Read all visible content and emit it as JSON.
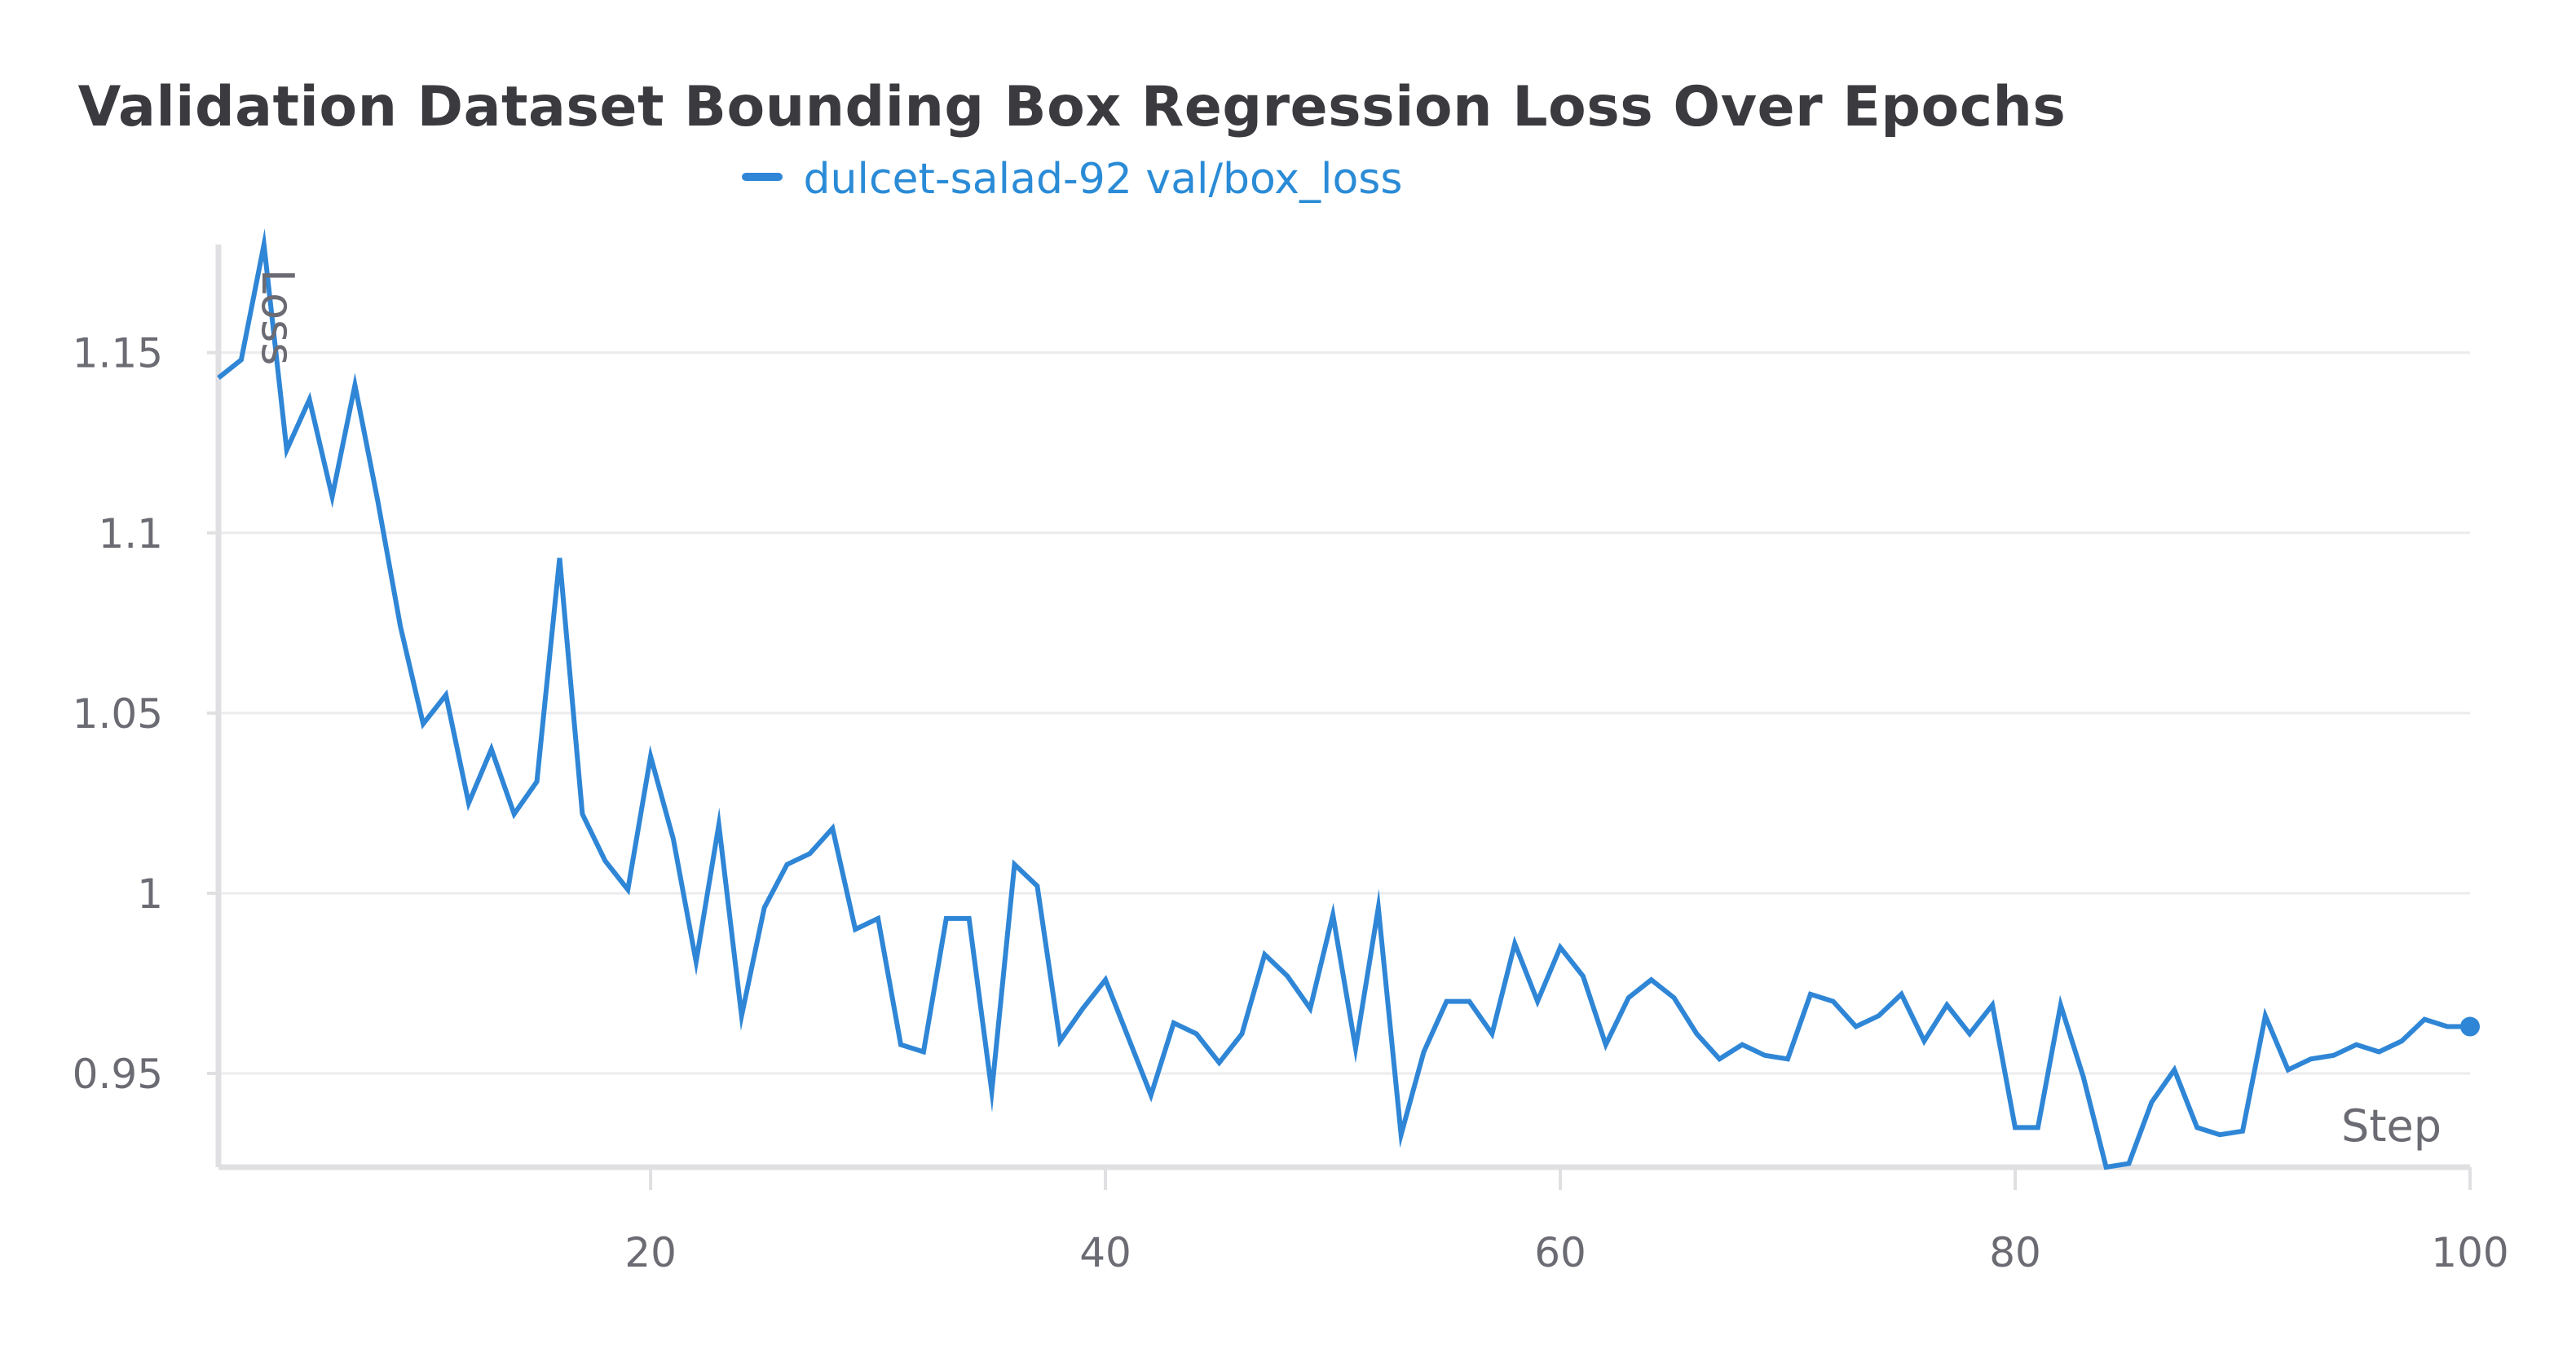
{
  "chart_data": {
    "type": "line",
    "title": "Validation Dataset Bounding Box Regression Loss Over Epochs",
    "xlabel": "Step",
    "ylabel": "Loss",
    "xlim": [
      1,
      100
    ],
    "ylim": [
      0.924,
      1.18
    ],
    "x_ticks": [
      20,
      40,
      60,
      80,
      100
    ],
    "x_tick_labels": [
      "20",
      "40",
      "60",
      "80",
      "100"
    ],
    "y_ticks": [
      0.95,
      1.0,
      1.05,
      1.1,
      1.15
    ],
    "y_tick_labels": [
      "0.95",
      "1",
      "1.05",
      "1.1",
      "1.15"
    ],
    "grid": true,
    "legend_position": "top-center",
    "series": [
      {
        "name": "dulcet-salad-92 val/box_loss",
        "color": "#2f86d6",
        "x": [
          1,
          2,
          3,
          4,
          5,
          6,
          7,
          8,
          9,
          10,
          11,
          12,
          13,
          14,
          15,
          16,
          17,
          18,
          19,
          20,
          21,
          22,
          23,
          24,
          25,
          26,
          27,
          28,
          29,
          30,
          31,
          32,
          33,
          34,
          35,
          36,
          37,
          38,
          39,
          40,
          41,
          42,
          43,
          44,
          45,
          46,
          47,
          48,
          49,
          50,
          51,
          52,
          53,
          54,
          55,
          56,
          57,
          58,
          59,
          60,
          61,
          62,
          63,
          64,
          65,
          66,
          67,
          68,
          69,
          70,
          71,
          72,
          73,
          74,
          75,
          76,
          77,
          78,
          79,
          80,
          81,
          82,
          83,
          84,
          85,
          86,
          87,
          88,
          89,
          90,
          91,
          92,
          93,
          94,
          95,
          96,
          97,
          98,
          99,
          100
        ],
        "values": [
          1.143,
          1.148,
          1.18,
          1.123,
          1.137,
          1.11,
          1.141,
          1.109,
          1.074,
          1.047,
          1.055,
          1.025,
          1.04,
          1.022,
          1.031,
          1.093,
          1.022,
          1.009,
          1.001,
          1.038,
          1.015,
          0.981,
          1.019,
          0.966,
          0.996,
          1.008,
          1.011,
          1.018,
          0.99,
          0.993,
          0.958,
          0.956,
          0.993,
          0.993,
          0.945,
          1.008,
          1.002,
          0.959,
          0.968,
          0.976,
          0.96,
          0.944,
          0.964,
          0.961,
          0.953,
          0.961,
          0.983,
          0.977,
          0.968,
          0.994,
          0.957,
          0.996,
          0.933,
          0.956,
          0.97,
          0.97,
          0.961,
          0.986,
          0.97,
          0.985,
          0.977,
          0.958,
          0.971,
          0.976,
          0.971,
          0.961,
          0.954,
          0.958,
          0.955,
          0.954,
          0.972,
          0.97,
          0.963,
          0.966,
          0.972,
          0.959,
          0.969,
          0.961,
          0.969,
          0.935,
          0.935,
          0.969,
          0.949,
          0.924,
          0.925,
          0.942,
          0.951,
          0.935,
          0.933,
          0.934,
          0.966,
          0.951,
          0.954,
          0.955,
          0.958,
          0.956,
          0.959,
          0.965,
          0.963,
          0.963
        ]
      }
    ]
  }
}
